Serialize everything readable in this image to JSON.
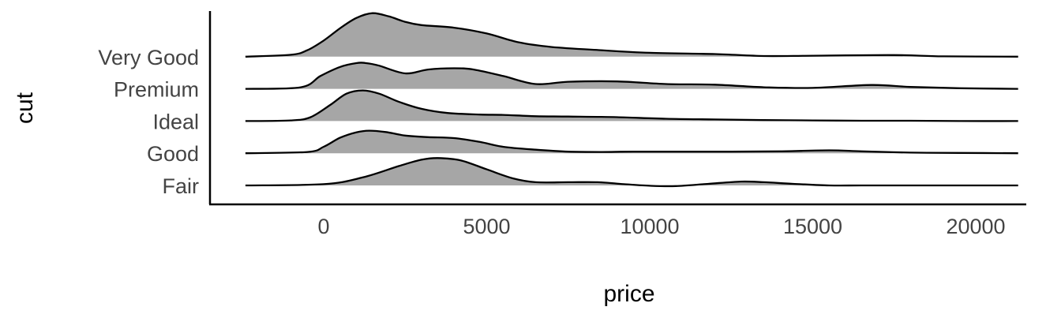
{
  "chart_data": {
    "type": "ridgeline",
    "title": "",
    "xlabel": "price",
    "ylabel": "cut",
    "xlim": [
      -2300,
      21700
    ],
    "x_ticks": [
      0,
      5000,
      10000,
      15000,
      20000
    ],
    "x_tick_labels": [
      "0",
      "5000",
      "10000",
      "15000",
      "20000"
    ],
    "grid": false,
    "legend": "none",
    "colors": {
      "fill": "#a6a6a6",
      "line": "#000000",
      "axis": "#000000",
      "tick_text": "#444444"
    },
    "categories": [
      "Fair",
      "Good",
      "Ideal",
      "Premium",
      "Very Good"
    ],
    "density_scale": "relative height in units of ridge spacing",
    "series": [
      {
        "name": "Fair",
        "x": [
          -2400,
          0,
          1200,
          2300,
          3000,
          3500,
          4200,
          5000,
          5800,
          6500,
          7500,
          8400,
          9200,
          10000,
          10800,
          11800,
          12800,
          13500,
          14400,
          15500,
          16500,
          18000,
          19500,
          21300
        ],
        "y": [
          0,
          0.04,
          0.25,
          0.6,
          0.8,
          0.85,
          0.78,
          0.5,
          0.22,
          0.1,
          0.1,
          0.1,
          0.04,
          -0.01,
          -0.02,
          0.05,
          0.12,
          0.1,
          0.05,
          0,
          0,
          0,
          0,
          0
        ]
      },
      {
        "name": "Good",
        "x": [
          -2400,
          -500,
          0,
          500,
          1000,
          1400,
          1900,
          2500,
          3200,
          4000,
          4800,
          5500,
          6500,
          7500,
          8500,
          9500,
          11000,
          12500,
          14000,
          15500,
          16500,
          18000,
          19500,
          21300
        ],
        "y": [
          0,
          0.04,
          0.2,
          0.48,
          0.65,
          0.7,
          0.66,
          0.55,
          0.5,
          0.47,
          0.35,
          0.2,
          0.11,
          0.05,
          0.04,
          0.05,
          0.05,
          0.05,
          0.06,
          0.09,
          0.06,
          0.02,
          0.01,
          0
        ]
      },
      {
        "name": "Ideal",
        "x": [
          -2400,
          -1000,
          -400,
          200,
          700,
          1200,
          1700,
          2300,
          3000,
          3800,
          4800,
          5500,
          6500,
          7500,
          9000,
          10500,
          12000,
          13500,
          15000,
          16500,
          18000,
          19500,
          21300
        ],
        "y": [
          0,
          0.02,
          0.12,
          0.5,
          0.85,
          0.95,
          0.85,
          0.6,
          0.38,
          0.25,
          0.2,
          0.19,
          0.15,
          0.14,
          0.12,
          0.07,
          0.05,
          0.03,
          0.02,
          0.01,
          0.01,
          0,
          0
        ]
      },
      {
        "name": "Premium",
        "x": [
          -2400,
          -700,
          -100,
          500,
          1000,
          1300,
          1700,
          2500,
          3200,
          4000,
          4600,
          5500,
          6500,
          7500,
          9000,
          10500,
          12000,
          13500,
          15000,
          16800,
          18000,
          19500,
          21300
        ],
        "y": [
          0,
          0.05,
          0.4,
          0.68,
          0.8,
          0.8,
          0.72,
          0.48,
          0.6,
          0.64,
          0.6,
          0.4,
          0.15,
          0.22,
          0.23,
          0.15,
          0.13,
          0.05,
          0.03,
          0.12,
          0.06,
          0.02,
          0
        ]
      },
      {
        "name": "Very Good",
        "x": [
          -2400,
          -1000,
          -500,
          0,
          500,
          1000,
          1500,
          2000,
          2500,
          3000,
          4000,
          5000,
          6000,
          7000,
          8500,
          10000,
          12000,
          13500,
          15000,
          17500,
          19000,
          21300
        ],
        "y": [
          0,
          0.06,
          0.2,
          0.5,
          0.88,
          1.2,
          1.35,
          1.25,
          1.08,
          0.98,
          0.9,
          0.72,
          0.44,
          0.3,
          0.2,
          0.12,
          0.08,
          0.02,
          0.03,
          0.05,
          0.01,
          0
        ]
      }
    ]
  }
}
